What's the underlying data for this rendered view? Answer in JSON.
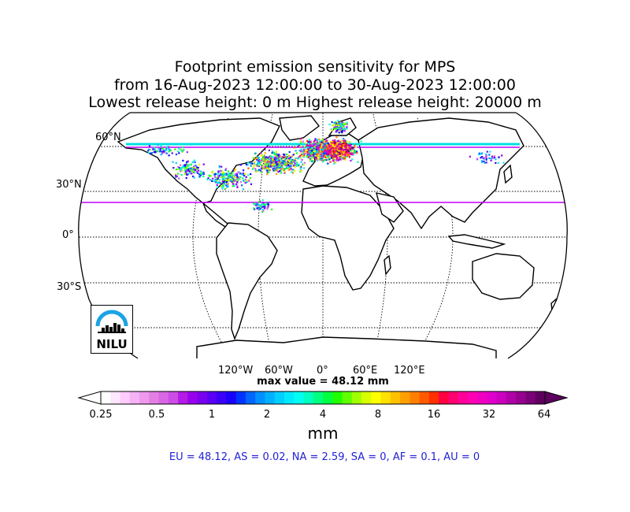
{
  "title": {
    "line1": "Footprint emission sensitivity for MPS",
    "line2": "from 16-Aug-2023 12:00:00 to 30-Aug-2023 12:00:00",
    "line3": "Lowest release height: 0 m      Highest release height: 20000 m"
  },
  "map": {
    "projection": "Robinson",
    "lat_labels": [
      "60°N",
      "30°N",
      "0°",
      "30°S"
    ],
    "lon_labels": [
      "120°W",
      "60°W",
      "0°",
      "60°E",
      "120°E"
    ],
    "highlight_line_colors": [
      "#00e0e0",
      "#c000ff"
    ]
  },
  "max_value": "max value = 48.12 mm",
  "colorbar": {
    "ticks": [
      "0.25",
      "0.5",
      "1",
      "2",
      "4",
      "8",
      "16",
      "32",
      "64"
    ],
    "unit": "mm",
    "colors": [
      "#ffffff",
      "#ffe6ff",
      "#ffccff",
      "#f5b3f5",
      "#ee99ee",
      "#e37fe3",
      "#d966e6",
      "#cc4de6",
      "#b31ae6",
      "#9900ee",
      "#7a00f0",
      "#5a00f5",
      "#3a00f8",
      "#1a00fa",
      "#0033ff",
      "#0066ff",
      "#0090ff",
      "#00b0ff",
      "#00cfff",
      "#00eaff",
      "#00fff0",
      "#00ffc0",
      "#00ff80",
      "#00ff40",
      "#20ff00",
      "#60ff00",
      "#a0ff00",
      "#d8ff00",
      "#ffff00",
      "#ffe000",
      "#ffc000",
      "#ffa000",
      "#ff8000",
      "#ff5a00",
      "#ff3000",
      "#ff0040",
      "#ff0070",
      "#ff0099",
      "#ff00b3",
      "#f000c0",
      "#e000cc",
      "#cc00c0",
      "#b000a8",
      "#96008e",
      "#7a0078",
      "#5e005e"
    ]
  },
  "regions": "EU = 48.12,  AS = 0.02,  NA = 2.59,  SA = 0,  AF = 0.1,  AU = 0",
  "logo": {
    "text": "NILU",
    "arc_color": "#1aa3e6"
  }
}
